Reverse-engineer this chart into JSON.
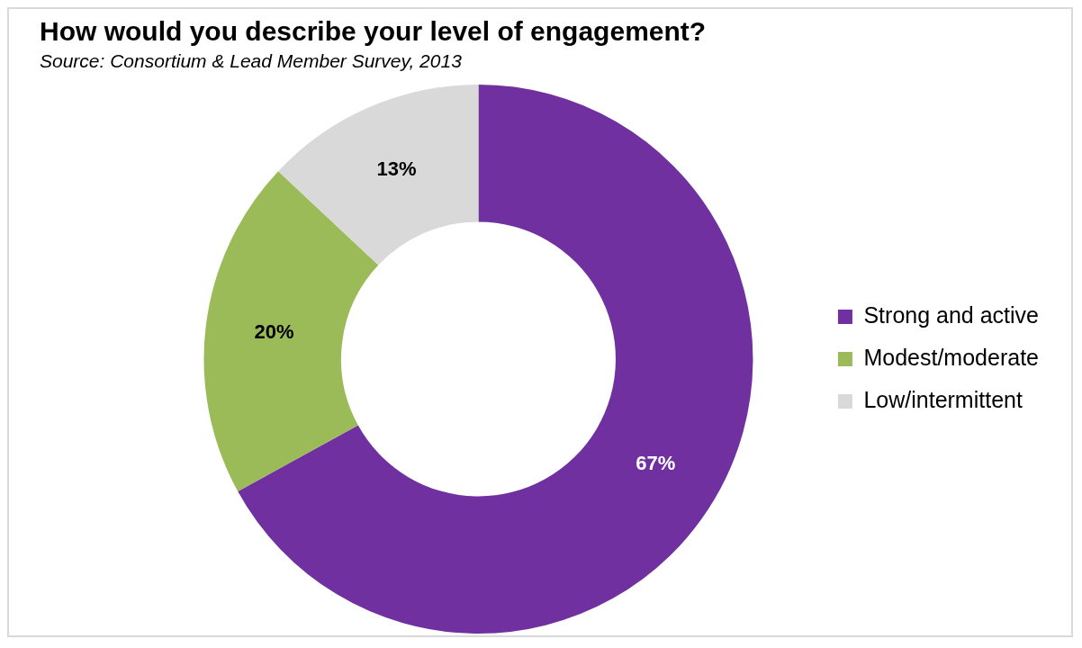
{
  "chart_data": {
    "type": "donut",
    "title": "How would you describe your level of engagement?",
    "annotations": [
      "Source: Consortium & Lead Member Survey, 2013"
    ],
    "categories": [
      "Strong and active",
      "Modest/moderate",
      "Low/intermittent"
    ],
    "values": [
      67,
      20,
      13
    ],
    "colors": [
      "#7030a0",
      "#9bbb59",
      "#d9d9d9"
    ],
    "value_labels": [
      "67%",
      "20%",
      "13%"
    ],
    "legend": "right"
  }
}
